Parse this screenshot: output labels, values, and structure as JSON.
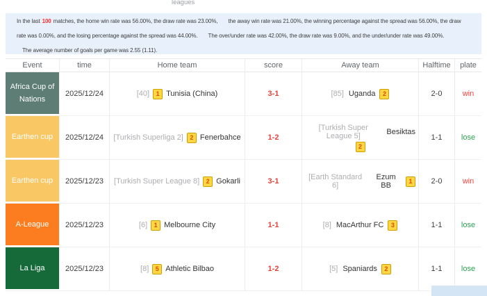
{
  "nav": {
    "clipped_text": "leagues"
  },
  "summary": {
    "line1_intro": "In the last",
    "line1_count": "100",
    "line1_a": "matches, the home win rate was 56.00%, the draw rate was 23.00%,",
    "line1_b": "the away win rate was 21.00%, the winning percentage against the spread was 56.00%, the draw",
    "line2_a": "rate was 0.00%, and the losing percentage against the spread was 44.00%.",
    "line2_b": "The over/under rate was 42.00%, the draw rate was 9.00%, and the under/under rate was 49.00%.",
    "line3": "The average number of goals per game was 2.55 (1.11)."
  },
  "table": {
    "headers": [
      "Event",
      "time",
      "Home team",
      "score",
      "Away team",
      "Halftime",
      "plate"
    ],
    "rows": [
      {
        "event": "Africa Cup of Nations",
        "event_bg": "#5e7d75",
        "time": "2025/12/24",
        "home_prefix": "[40]",
        "home_badge": "1",
        "home_name": "Tunisia (China)",
        "score": "3-1",
        "away_prefix": "[85]",
        "away_name": "Uganda",
        "away_badge": "2",
        "halftime": "2-0",
        "plate": "win",
        "plate_color": "#f8423b"
      },
      {
        "event": "Earthen cup",
        "event_bg": "#f9c763",
        "time": "2025/12/24",
        "home_prefix": "[Turkish Superliga 2]",
        "home_badge": "2",
        "home_name": "Fenerbahce",
        "score": "1-2",
        "away_prefix": "[Turkish Super League 5]",
        "away_name": "Besiktas",
        "away_badge": "2",
        "halftime": "1-1",
        "plate": "lose",
        "plate_color": "#2ba14f"
      },
      {
        "event": "Earthen cup",
        "event_bg": "#f9c763",
        "time": "2025/12/23",
        "home_prefix": "[Turkish Super League 8]",
        "home_badge": "2",
        "home_name": "Gokarli",
        "score": "3-1",
        "away_prefix": "[Earth Standard 6]",
        "away_name": "Ezum BB",
        "away_badge": "1",
        "halftime": "2-0",
        "plate": "win",
        "plate_color": "#f8423b"
      },
      {
        "event": "A-League",
        "event_bg": "#fb7d1f",
        "time": "2025/12/23",
        "home_prefix": "[6]",
        "home_badge": "1",
        "home_name": "Melbourne City",
        "score": "1-1",
        "away_prefix": "[8]",
        "away_name": "MacArthur FC",
        "away_badge": "3",
        "halftime": "1-1",
        "plate": "lose",
        "plate_color": "#2ba14f"
      },
      {
        "event": "La Liga",
        "event_bg": "#166a39",
        "time": "2025/12/23",
        "home_prefix": "[8]",
        "home_badge": "5",
        "home_name": "Athletic Bilbao",
        "score": "1-2",
        "away_prefix": "[5]",
        "away_name": "Spaniards",
        "away_badge": "2",
        "halftime": "1-1",
        "plate": "lose",
        "plate_color": "#2ba14f"
      }
    ]
  },
  "colors": {
    "summary_bg": "#e8f1fb",
    "count_red": "#ff2b2b",
    "score_red": "#e93f39",
    "badge_bg": "#fdd644",
    "badge_border": "#cf9f00",
    "badge_text": "#dd4f00",
    "prefix_gray": "#aeaeb2",
    "header_text": "#606468",
    "bottom_bar": "#d4e5f6"
  }
}
